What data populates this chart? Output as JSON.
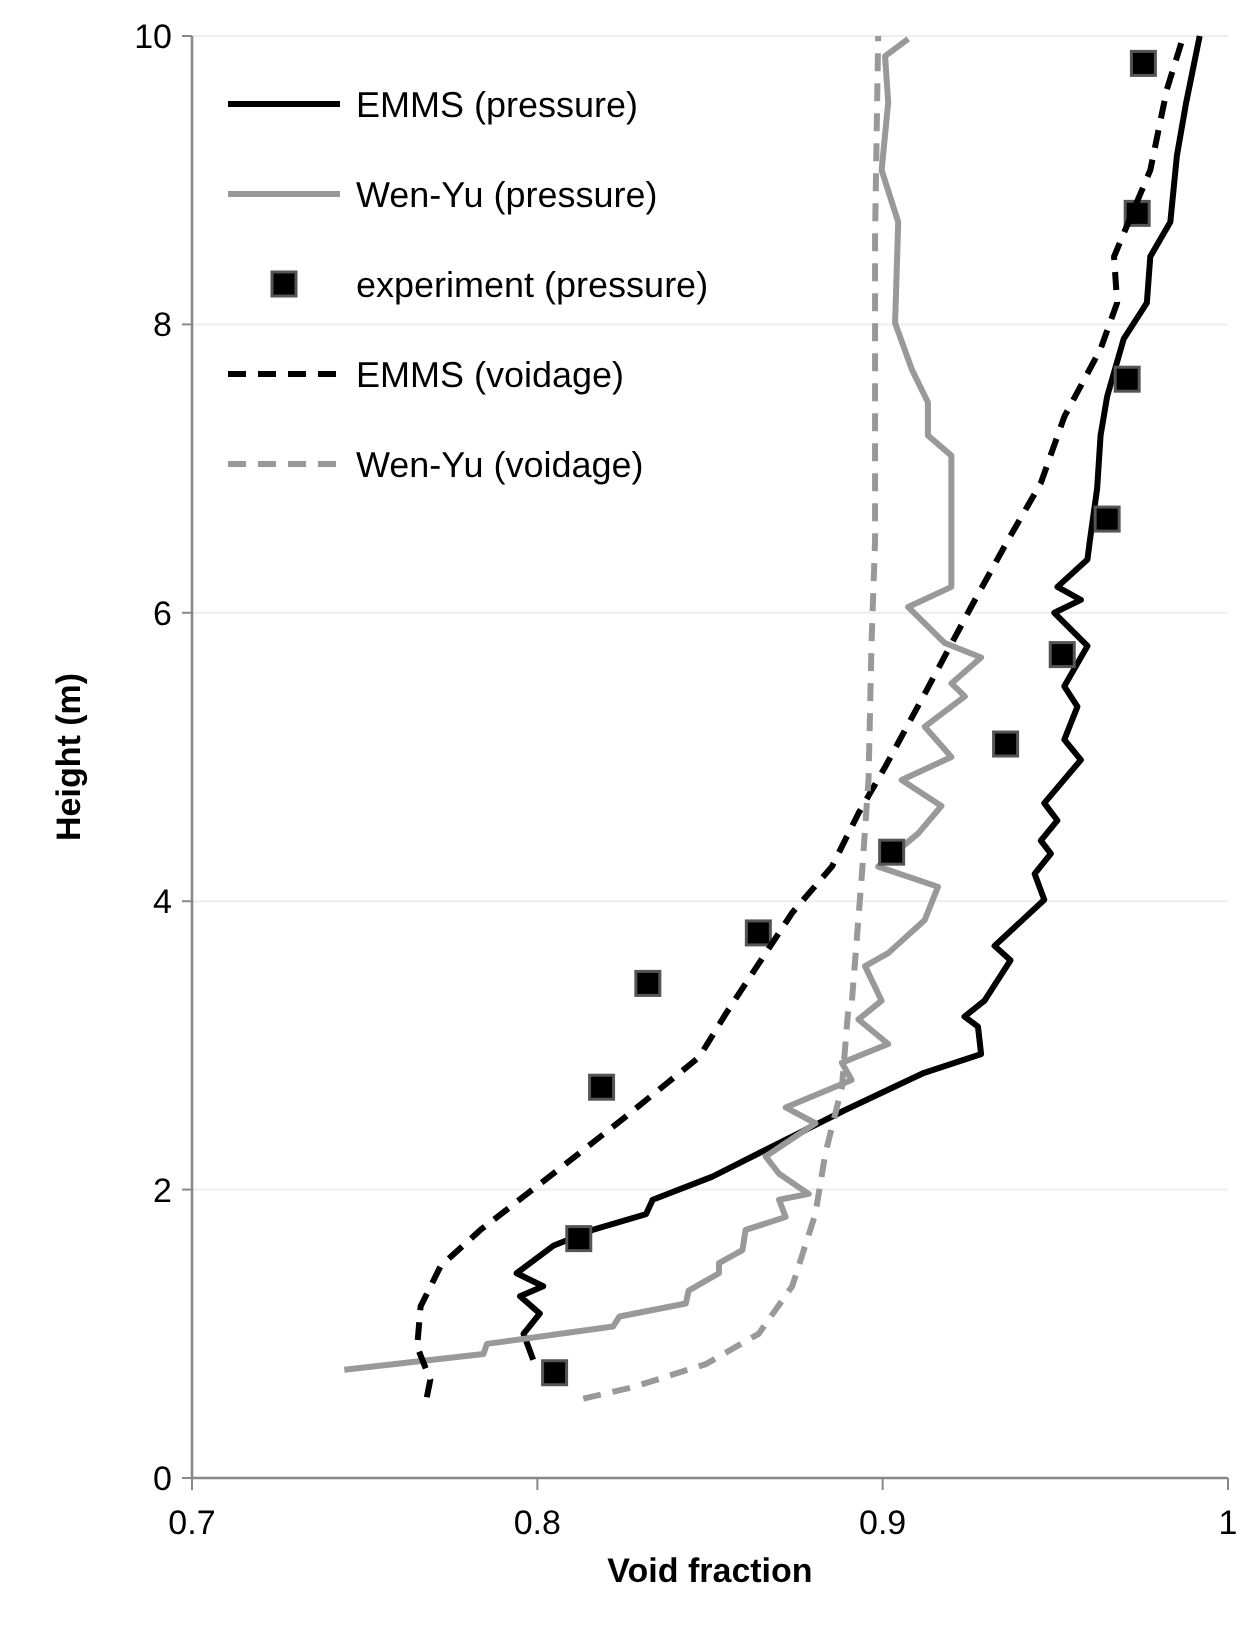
{
  "chart_data": {
    "type": "line",
    "xlabel": "Void fraction",
    "ylabel": "Height (m)",
    "xlim": [
      0.7,
      1
    ],
    "xticks": [
      0.7,
      0.8,
      0.9,
      {
        "value": 1,
        "label": "1"
      }
    ],
    "ylim": [
      0,
      10
    ],
    "yticks": [
      0,
      2,
      4,
      6,
      8,
      10
    ],
    "grid": "y",
    "legend": "top left",
    "series": [
      {
        "name": "EMMS (pressure)",
        "type": "line",
        "color": "#000000",
        "line_style": "solid",
        "x": [
          0.7988,
          0.796,
          0.8007,
          0.795,
          0.8017,
          0.794,
          0.8046,
          0.816,
          0.8315,
          0.8334,
          0.8507,
          0.864,
          0.889,
          0.912,
          0.9285,
          0.9276,
          0.9237,
          0.9295,
          0.937,
          0.9324,
          0.9468,
          0.944,
          0.9487,
          0.9458,
          0.9506,
          0.9468,
          0.9574,
          0.9526,
          0.9564,
          0.9526,
          0.9593,
          0.9497,
          0.9574,
          0.9506,
          0.9593,
          0.96,
          0.9621,
          0.9631,
          0.965,
          0.9698,
          0.9765,
          0.9775,
          0.9833,
          0.9852,
          0.9879,
          0.9918
        ],
        "values": [
          0.82,
          1.0,
          1.14,
          1.26,
          1.33,
          1.42,
          1.61,
          1.72,
          1.83,
          1.93,
          2.09,
          2.25,
          2.55,
          2.81,
          2.94,
          3.13,
          3.2,
          3.31,
          3.59,
          3.69,
          4.01,
          4.19,
          4.33,
          4.42,
          4.56,
          4.68,
          4.98,
          5.12,
          5.35,
          5.49,
          5.77,
          6.0,
          6.09,
          6.18,
          6.37,
          6.5,
          6.86,
          7.23,
          7.5,
          7.9,
          8.15,
          8.47,
          8.71,
          9.17,
          9.54,
          10
        ]
      },
      {
        "name": "Wen-Yu (pressure)",
        "type": "line",
        "color": "#999999",
        "line_style": "solid",
        "x": [
          0.7441,
          0.7844,
          0.7854,
          0.8219,
          0.8238,
          0.843,
          0.8438,
          0.8526,
          0.8526,
          0.8594,
          0.8603,
          0.8719,
          0.87,
          0.8786,
          0.87,
          0.8661,
          0.8805,
          0.8719,
          0.891,
          0.8882,
          0.9016,
          0.893,
          0.8997,
          0.8949,
          0.9016,
          0.9122,
          0.916,
          0.8987,
          0.9103,
          0.917,
          0.9055,
          0.9199,
          0.9122,
          0.9238,
          0.9199,
          0.9285,
          0.918,
          0.9074,
          0.9199,
          0.9199,
          0.9199,
          0.9131,
          0.9131,
          0.9084,
          0.9036,
          0.9045,
          0.8997,
          0.9016,
          0.9007,
          0.9074
        ],
        "values": [
          0.75,
          0.86,
          0.93,
          1.05,
          1.12,
          1.21,
          1.3,
          1.42,
          1.49,
          1.58,
          1.72,
          1.81,
          1.93,
          1.97,
          2.11,
          2.23,
          2.46,
          2.57,
          2.76,
          2.88,
          3.01,
          3.18,
          3.31,
          3.55,
          3.64,
          3.87,
          4.1,
          4.24,
          4.47,
          4.66,
          4.84,
          5.0,
          5.21,
          5.42,
          5.51,
          5.69,
          5.79,
          6.04,
          6.18,
          6.5,
          7.09,
          7.23,
          7.46,
          7.69,
          8.01,
          8.71,
          9.07,
          9.54,
          9.86,
          9.98
        ]
      },
      {
        "name": "experiment (pressure)",
        "type": "scatter",
        "color": "#000000",
        "marker": "square",
        "x": [
          0.9755,
          0.9737,
          0.9708,
          0.965,
          0.952,
          0.9356,
          0.9026,
          0.864,
          0.832,
          0.8186,
          0.812,
          0.805
        ],
        "values": [
          9.81,
          8.77,
          7.62,
          6.65,
          5.71,
          5.09,
          4.34,
          3.78,
          3.43,
          2.71,
          1.66,
          0.73
        ]
      },
      {
        "name": "EMMS (voidage)",
        "type": "line",
        "color": "#000000",
        "line_style": "dashed",
        "x": [
          0.768,
          0.769,
          0.7652,
          0.7662,
          0.772,
          0.7835,
          0.8046,
          0.8258,
          0.8469,
          0.8546,
          0.8738,
          0.8853,
          0.893,
          0.9007,
          0.9122,
          0.9256,
          0.9362,
          0.9458,
          0.9526,
          0.9631,
          0.9679,
          0.967,
          0.9775,
          0.9823,
          0.9871
        ],
        "values": [
          0.56,
          0.68,
          0.91,
          1.19,
          1.47,
          1.72,
          2.11,
          2.51,
          2.92,
          3.22,
          3.92,
          4.24,
          4.61,
          4.93,
          5.44,
          6.04,
          6.5,
          6.9,
          7.36,
          7.83,
          8.15,
          8.47,
          9.07,
          9.63,
          10
        ]
      },
      {
        "name": "Wen-Yu (voidage)",
        "type": "line",
        "color": "#999999",
        "line_style": "dashed",
        "x": [
          0.8133,
          0.8277,
          0.8488,
          0.8641,
          0.8738,
          0.8805,
          0.8834,
          0.8882,
          0.8901,
          0.8911,
          0.894,
          0.8959,
          0.8968,
          0.8978,
          0.8978,
          0.8978,
          0.8987
        ],
        "values": [
          0.55,
          0.63,
          0.79,
          1.0,
          1.33,
          1.83,
          2.25,
          2.71,
          3.27,
          3.31,
          4.19,
          4.84,
          5.81,
          6.5,
          7.23,
          8.62,
          10
        ]
      }
    ]
  }
}
